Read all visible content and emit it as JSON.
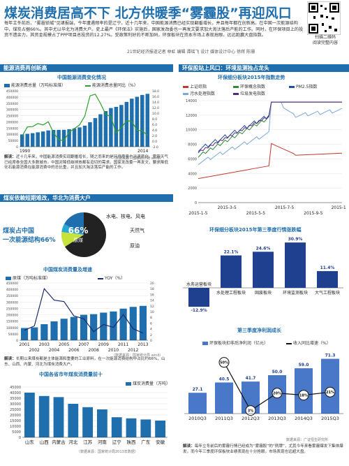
{
  "header": {
    "title": "煤炭消费居高不下 北方供暖季“雾霾股”再迎风口",
    "lead": "每年立冬前后，“雾霾锁城”见诸报端，今年遭遇频率的是辽宁。近十几年来，中国能源消费已经实现翻番增长，并且每年都在创新高。在中国一次能源结构中，煤炭占据66%。其中尤以华北为消费大户。史上最严《环保法》实施后，国家发改委也一再发文要求加大淘汰落后产能的工作。同时，在环保项目上的投资不遗余力，其资金规模占了PPP项目总投资的12.27%。受政策利好的不断加码，环保板块在资本市场上表现抢眼，远远跑赢大盘指数。",
    "byline": "21世纪经济报道记者 林虹 编辑 谭瑶飞 设计 媒体设计中心 徐辉 陈珊",
    "qr_caption_1": "扫描二维码",
    "qr_caption_2": "阅读完整内容"
  },
  "sections": {
    "s1": "能源消费再创新高",
    "s2": "环保股站上风口：环境监测独占龙头",
    "s3": "煤炭依赖短期难改，华北为消费大户",
    "s4": "第三季度净利润成长"
  },
  "chart_data": [
    {
      "id": "energy",
      "type": "bar",
      "title": "中国能源消费变化情况",
      "series": [
        {
          "name": "能源消费总量（万吨标准煤）",
          "kind": "bar"
        },
        {
          "name": "能源消费总量同比（%）",
          "kind": "line"
        }
      ],
      "x_labels": [
        "1990",
        "2014"
      ],
      "y_left_ticks": [
        "0",
        "50000",
        "100000",
        "150000",
        "200000",
        "250000",
        "300000",
        "350000",
        "400000",
        "450000"
      ],
      "y_right_ticks": [
        "-2.0",
        "0.0",
        "2.0",
        "4.0",
        "6.0",
        "8.0",
        "10.0",
        "12.0",
        "14.0",
        "16.0",
        "18.0"
      ],
      "values": [
        98703,
        103783,
        109170,
        115993,
        122737,
        131176,
        135192,
        135909,
        136184,
        140569,
        146964,
        155547,
        169577,
        197083,
        230281,
        261369,
        286467,
        311442,
        320611,
        336126,
        360648,
        387043,
        402138,
        416913,
        425806
      ],
      "growth": [
        1.8,
        5.1,
        5.2,
        6.3,
        5.8,
        6.9,
        3.1,
        0.5,
        0.2,
        3.2,
        4.5,
        5.8,
        9.0,
        16.2,
        16.8,
        13.5,
        9.6,
        8.7,
        2.9,
        4.8,
        7.3,
        7.1,
        3.9,
        3.7,
        2.1
      ],
      "source": "（数据来源：国家统计局 wind）",
      "note": "近十几年来，中国能源消费实现翻番增长，随之而来的是环境质量也迅速恶化。雾霾天气已经席卷全国大多数城市。中国对降低碳排放都有迫切的需求。国家发改委一再发文，要求降低化石能源消费在能源消费中的总比重，并且加大淘汰落后产能的工作。",
      "note_label": "解读："
    },
    {
      "id": "env_index",
      "type": "line",
      "title": "环保细分板块2015年指数走势",
      "series": [
        {
          "name": "上证综指",
          "color": "#c0392b"
        },
        {
          "name": "环保概念指数",
          "color": "#2e8b3a"
        },
        {
          "name": "PM2.5指数",
          "color": "#1f4fa3"
        },
        {
          "name": "污水处理指数",
          "color": "#7aa7d8"
        },
        {
          "name": "垃圾发电指数",
          "color": "#5a2a7a"
        }
      ],
      "x_labels": [
        "2015-1-5",
        "2015-3-5",
        "2015-5-5",
        "2015-7-5",
        "2015-9-5",
        "2015-11-5"
      ],
      "y_ticks": [
        "0",
        "2000",
        "4000",
        "6000",
        "8000",
        "10000",
        "12000",
        "14000"
      ],
      "ylim": [
        0,
        14000
      ]
    },
    {
      "id": "coal_share",
      "type": "pie",
      "slices": [
        {
          "label": "原煤",
          "value": 66,
          "color": "#222222"
        },
        {
          "label": "水电、核电、风电",
          "value": 11,
          "color": "#c6e33b"
        },
        {
          "label": "天然气",
          "value": 6,
          "color": "#2aa7d8"
        },
        {
          "label": "原油",
          "value": 17,
          "color": "#1f6fae"
        }
      ],
      "center_pct": "66%",
      "center_label": "原煤",
      "headline_1": "煤炭占中国",
      "headline_2": "一次能源结构66%"
    },
    {
      "id": "coal_consumption",
      "type": "bar",
      "title": "中国煤炭消费量及增速",
      "series": [
        {
          "name": "原煤（万吨标准煤）",
          "kind": "bar"
        },
        {
          "name": "YOY（%）",
          "kind": "line"
        }
      ],
      "categories": [
        "2001",
        "2002",
        "2003",
        "2004",
        "2005",
        "2006",
        "2007",
        "2008",
        "2009",
        "2010",
        "2011",
        "2012",
        "2013"
      ],
      "values": [
        96,
        101,
        126,
        148,
        169,
        183,
        200,
        205,
        217,
        226,
        248,
        262,
        270
      ],
      "yoy": [
        3.5,
        5.0,
        18.0,
        14.0,
        13.5,
        8.5,
        7.5,
        3.0,
        5.5,
        4.5,
        9.0,
        4.0,
        2.5
      ],
      "x_labels_top": [
        "2001",
        "2003",
        "2005",
        "2007",
        "2009",
        "2011",
        "2013"
      ],
      "x_labels_bottom": [
        "2002",
        "2004",
        "2006",
        "2008",
        "2010",
        "2012"
      ],
      "y_left_ticks": [
        "0",
        "50000",
        "100000",
        "150000",
        "200000",
        "250000",
        "300000",
        "350000",
        "400000",
        "450000"
      ],
      "y_right_ticks": [
        "0",
        "2",
        "4",
        "6",
        "8",
        "10",
        "12",
        "14",
        "16",
        "18",
        "20"
      ],
      "source": "（数据来源：国家统计局 wind）",
      "note_label": "解读：",
      "note": "长期以来煤炭都是主体能源和重要的工业原料，在一次能源消费结构中占比约66%，山东、山西、内蒙、河北为煤炭消费大户。"
    },
    {
      "id": "province",
      "type": "bar",
      "title": "中国各省市年煤炭消费量前十",
      "legend": "煤炭消费量（万吨）",
      "categories": [
        "山东",
        "山西",
        "内蒙古",
        "河北",
        "江苏",
        "河南",
        "辽宁",
        "陕西",
        "广东",
        "安徽"
      ],
      "values": [
        40000,
        37000,
        36000,
        30000,
        27000,
        25000,
        18000,
        17000,
        16000,
        15000
      ],
      "y_ticks": [
        "0",
        "5000",
        "10000",
        "15000",
        "20000",
        "25000",
        "30000",
        "35000",
        "40000",
        "45000"
      ],
      "source": "（数据来源：国家统计局2013年数据）"
    },
    {
      "id": "sub_growth",
      "type": "bar",
      "title": "环保细分板块2015年第三季度行情涨跌幅",
      "categories": [
        "水务运营板块",
        "水处理工程板块",
        "固废板块",
        "环境监测板块",
        "大气工程板块"
      ],
      "values": [
        -12.9,
        22.1,
        24.6,
        30.9,
        11.4
      ],
      "labels": [
        "-12.9%",
        "22.1%",
        "24.6%",
        "30.9%",
        "11.4%"
      ]
    },
    {
      "id": "profit",
      "type": "bar",
      "title": "第三季度净利润成长",
      "series": [
        {
          "name": "环保板块扣非后净利润（亿元）",
          "kind": "bar"
        },
        {
          "name": "收入同比增速（%）",
          "kind": "line"
        }
      ],
      "categories": [
        "2010Q3",
        "2011Q3",
        "2012Q3",
        "2013Q3",
        "2014Q3",
        "2015Q3"
      ],
      "values": [
        27.1,
        40.5,
        41.7,
        50.0,
        59.0,
        71.3
      ],
      "value_labels": [
        "27.1",
        "40.5",
        "41.7",
        "50.0",
        "59.0",
        "71.3"
      ],
      "growth": [
        null,
        50,
        3,
        20,
        18,
        21
      ],
      "growth_labels": [
        "",
        "50%",
        "3%",
        "20%",
        "18%",
        "21%"
      ],
      "source": "数据来源：广证恒生研究所",
      "note_label": "解读：",
      "note": "每年立冬前后的雾霾行情已经成为“雾霾股”的“例牌”，尤其今年来看雾霾爆发下集体爆发。而今年三季度环保板块业绩表现在十分抢眼。市场表现也远超大盘。"
    }
  ]
}
